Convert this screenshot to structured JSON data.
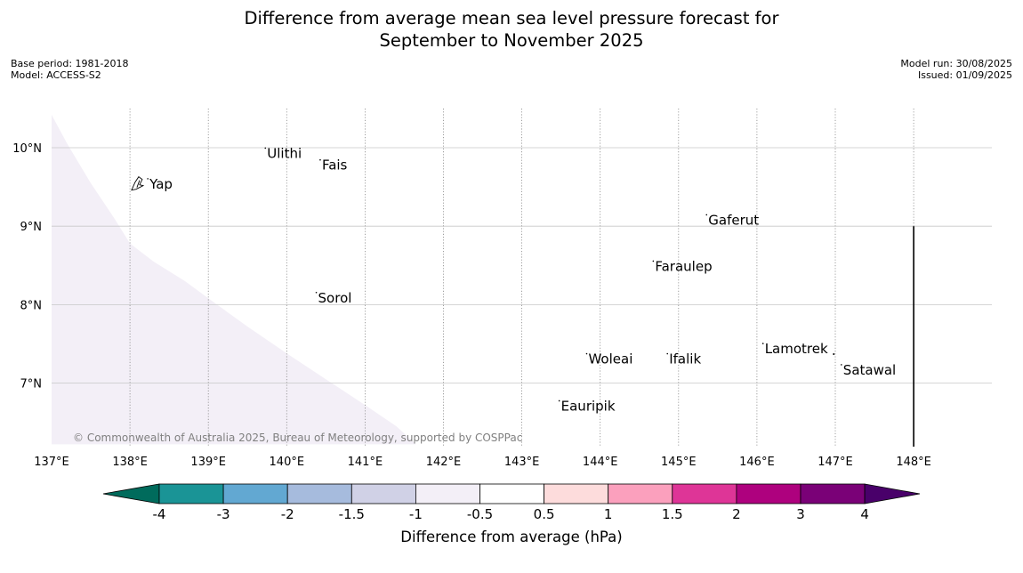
{
  "title": {
    "line1": "Difference from average mean sea level pressure forecast for",
    "line2": "September to November 2025"
  },
  "meta": {
    "base_period": "Base period: 1981-2018",
    "model": "Model: ACCESS-S2",
    "model_run": "Model run: 30/08/2025",
    "issued": "Issued: 01/09/2025"
  },
  "map": {
    "lon_ticks": [
      "137°E",
      "138°E",
      "139°E",
      "140°E",
      "141°E",
      "142°E",
      "143°E",
      "144°E",
      "145°E",
      "146°E",
      "147°E",
      "148°E"
    ],
    "lat_ticks": [
      "10°N",
      "9°N",
      "8°N",
      "7°N"
    ],
    "places": [
      {
        "name": "Yap",
        "lon": 138.25,
        "lat": 9.48
      },
      {
        "name": "Ulithi",
        "lon": 139.75,
        "lat": 9.87
      },
      {
        "name": "Fais",
        "lon": 140.45,
        "lat": 9.72
      },
      {
        "name": "Gaferut",
        "lon": 145.38,
        "lat": 9.02
      },
      {
        "name": "Faraulep",
        "lon": 144.7,
        "lat": 8.43
      },
      {
        "name": "Sorol",
        "lon": 140.4,
        "lat": 8.03
      },
      {
        "name": "Woleai",
        "lon": 143.85,
        "lat": 7.25
      },
      {
        "name": "Ifalik",
        "lon": 144.88,
        "lat": 7.25
      },
      {
        "name": "Lamotrek",
        "lon": 146.1,
        "lat": 7.38
      },
      {
        "name": "Satawal",
        "lon": 147.1,
        "lat": 7.11
      },
      {
        "name": "Eauripik",
        "lon": 143.5,
        "lat": 6.65
      }
    ],
    "copyright": "© Commonwealth of Australia 2025, Bureau of Meteorology, supported by COSPPac"
  },
  "colorbar": {
    "label": "Difference from average (hPa)",
    "ticks": [
      "-4",
      "-3",
      "-2",
      "-1.5",
      "-1",
      "-0.5",
      "0.5",
      "1",
      "1.5",
      "2",
      "3",
      "4"
    ],
    "colors": [
      "#006b5c",
      "#1a9496",
      "#62a8d2",
      "#a6bbdd",
      "#d0d1e6",
      "#f3eff7",
      "#ffffff",
      "#fddcdc",
      "#fba0bd",
      "#de3597",
      "#ae017e",
      "#7a0177",
      "#49006a"
    ]
  }
}
